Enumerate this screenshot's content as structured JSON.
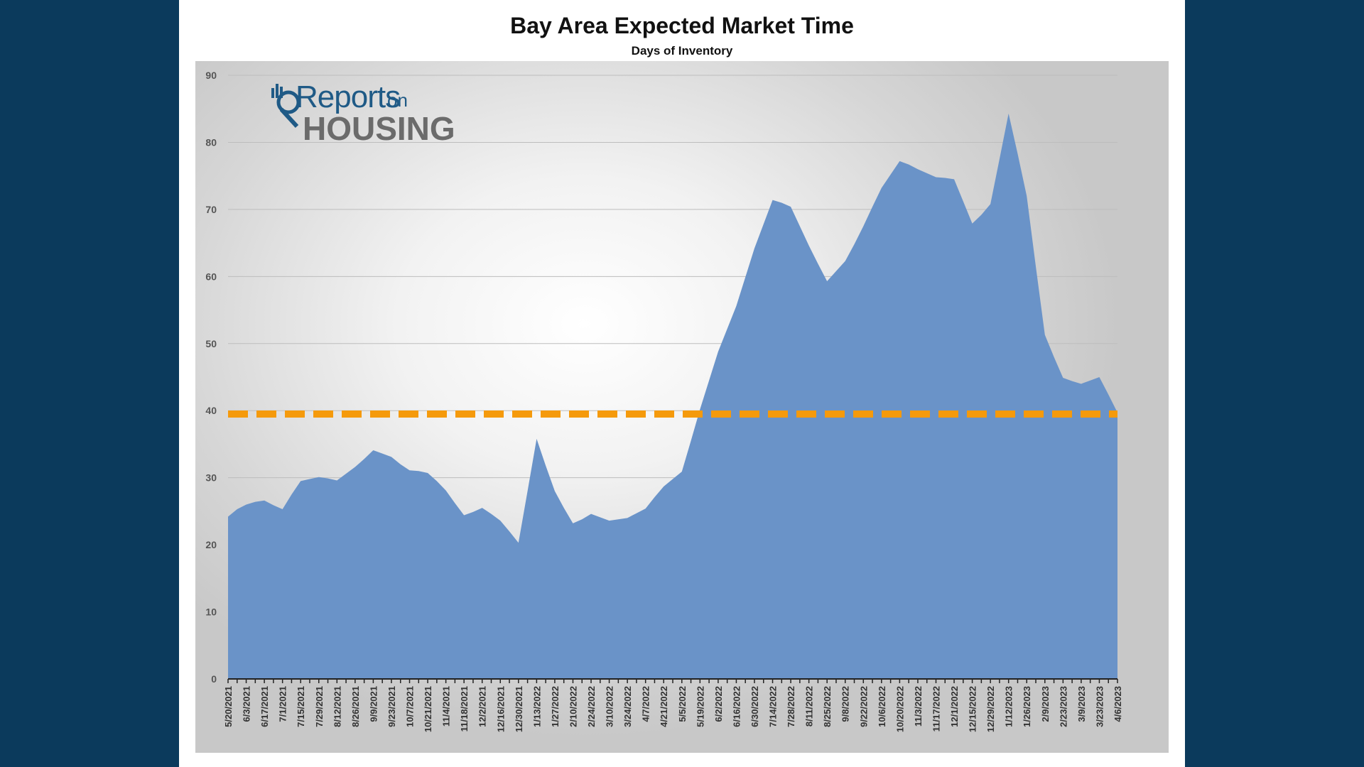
{
  "chart_data": {
    "type": "area",
    "title": "Bay Area Expected Market Time",
    "subtitle": "Days of Inventory",
    "xlabel": "",
    "ylabel": "",
    "ylim": [
      0,
      90
    ],
    "yticks": [
      0,
      10,
      20,
      30,
      40,
      50,
      60,
      70,
      80,
      90
    ],
    "grid": true,
    "x": [
      "5/20/2021",
      "5/27/2021",
      "6/3/2021",
      "6/10/2021",
      "6/17/2021",
      "6/24/2021",
      "7/1/2021",
      "7/8/2021",
      "7/15/2021",
      "7/22/2021",
      "7/29/2021",
      "8/5/2021",
      "8/12/2021",
      "8/19/2021",
      "8/26/2021",
      "9/2/2021",
      "9/9/2021",
      "9/16/2021",
      "9/23/2021",
      "9/30/2021",
      "10/7/2021",
      "10/14/2021",
      "10/21/2021",
      "10/28/2021",
      "11/4/2021",
      "11/11/2021",
      "11/18/2021",
      "11/25/2021",
      "12/2/2021",
      "12/9/2021",
      "12/16/2021",
      "12/23/2021",
      "12/30/2021",
      "1/6/2022",
      "1/13/2022",
      "1/20/2022",
      "1/27/2022",
      "2/3/2022",
      "2/10/2022",
      "2/17/2022",
      "2/24/2022",
      "3/3/2022",
      "3/10/2022",
      "3/17/2022",
      "3/24/2022",
      "3/31/2022",
      "4/7/2022",
      "4/14/2022",
      "4/21/2022",
      "4/28/2022",
      "5/5/2022",
      "5/12/2022",
      "5/19/2022",
      "5/26/2022",
      "6/2/2022",
      "6/9/2022",
      "6/16/2022",
      "6/23/2022",
      "6/30/2022",
      "7/7/2022",
      "7/14/2022",
      "7/21/2022",
      "7/28/2022",
      "8/4/2022",
      "8/11/2022",
      "8/18/2022",
      "8/25/2022",
      "9/1/2022",
      "9/8/2022",
      "9/15/2022",
      "9/22/2022",
      "9/29/2022",
      "10/6/2022",
      "10/13/2022",
      "10/20/2022",
      "10/27/2022",
      "11/3/2022",
      "11/10/2022",
      "11/17/2022",
      "11/24/2022",
      "12/1/2022",
      "12/8/2022",
      "12/15/2022",
      "12/22/2022",
      "12/29/2022",
      "1/5/2023",
      "1/12/2023",
      "1/19/2023",
      "1/26/2023",
      "2/2/2023",
      "2/9/2023",
      "2/16/2023",
      "2/23/2023",
      "3/2/2023",
      "3/9/2023",
      "3/16/2023",
      "3/23/2023",
      "3/30/2023",
      "4/6/2023"
    ],
    "tick_labels": [
      "5/20/2021",
      "6/3/2021",
      "6/17/2021",
      "7/1/2021",
      "7/15/2021",
      "7/29/2021",
      "8/12/2021",
      "8/26/2021",
      "9/9/2021",
      "9/23/2021",
      "10/7/2021",
      "10/21/2021",
      "11/4/2021",
      "11/18/2021",
      "12/2/2021",
      "12/16/2021",
      "12/30/2021",
      "1/13/2022",
      "1/27/2022",
      "2/10/2022",
      "2/24/2022",
      "3/10/2022",
      "3/24/2022",
      "4/7/2022",
      "4/21/2022",
      "5/5/2022",
      "5/19/2022",
      "6/2/2022",
      "6/16/2022",
      "6/30/2022",
      "7/14/2022",
      "7/28/2022",
      "8/11/2022",
      "8/25/2022",
      "9/8/2022",
      "9/22/2022",
      "10/6/2022",
      "10/20/2022",
      "11/3/2022",
      "11/17/2022",
      "12/1/2022",
      "12/15/2022",
      "12/29/2022",
      "1/12/2023",
      "1/26/2023",
      "2/9/2023",
      "2/23/2023",
      "3/9/2023",
      "3/23/2023",
      "4/6/2023"
    ],
    "series": [
      {
        "name": "Days of Inventory",
        "values": [
          24.2,
          25.3,
          26.0,
          26.4,
          26.6,
          25.9,
          25.3,
          27.5,
          29.5,
          29.8,
          30.1,
          29.9,
          29.6,
          30.6,
          31.6,
          32.8,
          34.1,
          33.6,
          33.1,
          32.0,
          31.1,
          31.0,
          30.7,
          29.5,
          28.1,
          26.2,
          24.4,
          24.9,
          25.5,
          24.6,
          23.6,
          22.0,
          20.3,
          28.0,
          35.8,
          31.8,
          28.0,
          25.5,
          23.2,
          23.8,
          24.6,
          24.1,
          23.6,
          23.8,
          24.0,
          24.7,
          25.4,
          27.1,
          28.7,
          29.8,
          30.9,
          35.5,
          40.2,
          44.5,
          48.8,
          52.2,
          55.6,
          59.9,
          64.2,
          67.8,
          71.4,
          71.0,
          70.4,
          67.5,
          64.6,
          61.9,
          59.3,
          60.8,
          62.3,
          64.8,
          67.5,
          70.4,
          73.2,
          75.2,
          77.2,
          76.7,
          76.0,
          75.4,
          74.8,
          74.7,
          74.5,
          71.2,
          67.9,
          69.2,
          70.8,
          77.5,
          84.3,
          78.3,
          72.0,
          61.5,
          51.3,
          48.0,
          44.9,
          44.4,
          44.0,
          44.5,
          45.0,
          42.4,
          39.7
        ]
      }
    ],
    "reference_line": {
      "value": 39.5,
      "style": "dashed",
      "color": "#f59a0c"
    },
    "area_color": "#6a93c8"
  },
  "logo": {
    "word1": "Reports",
    "word2": "on",
    "word3": "HOUSING"
  }
}
